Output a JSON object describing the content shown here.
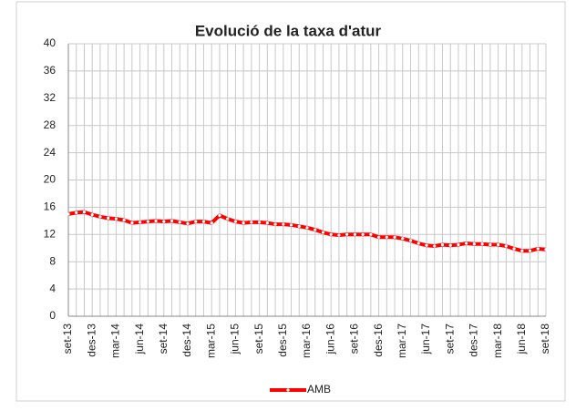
{
  "chart_data": {
    "type": "line",
    "title": "Evolució de la taxa d'atur",
    "categories": [
      "set-13",
      null,
      null,
      "des-13",
      null,
      null,
      "mar-14",
      null,
      null,
      "jun-14",
      null,
      null,
      "set-14",
      null,
      null,
      "des-14",
      null,
      null,
      "mar-15",
      null,
      null,
      "jun-15",
      null,
      null,
      "set-15",
      null,
      null,
      "des-15",
      null,
      null,
      "mar-16",
      null,
      null,
      "jun-16",
      null,
      null,
      "set-16",
      null,
      null,
      "des-16",
      null,
      null,
      "mar-17",
      null,
      null,
      "jun-17",
      null,
      null,
      "set-17",
      null,
      null,
      "des-17",
      null,
      null,
      "mar-18",
      null,
      null,
      "jun-18",
      null,
      null,
      "set-18"
    ],
    "series": [
      {
        "name": "AMB",
        "color": "#ff0000",
        "values": [
          15.0,
          15.2,
          15.3,
          14.9,
          14.6,
          14.4,
          14.3,
          14.1,
          13.7,
          13.8,
          13.9,
          14.0,
          13.9,
          14.0,
          13.8,
          13.6,
          13.9,
          13.9,
          13.7,
          14.8,
          14.3,
          13.9,
          13.7,
          13.8,
          13.8,
          13.7,
          13.5,
          13.5,
          13.4,
          13.2,
          13.0,
          12.7,
          12.3,
          12.0,
          11.9,
          12.0,
          12.0,
          12.0,
          12.0,
          11.6,
          11.6,
          11.6,
          11.4,
          11.1,
          10.7,
          10.4,
          10.3,
          10.5,
          10.4,
          10.5,
          10.7,
          10.6,
          10.6,
          10.5,
          10.5,
          10.3,
          9.9,
          9.6,
          9.6,
          9.9,
          9.8
        ]
      }
    ],
    "ylim": [
      0,
      40
    ],
    "yticks": [
      0,
      4,
      8,
      12,
      16,
      20,
      24,
      28,
      32,
      36,
      40
    ],
    "grid": true
  }
}
